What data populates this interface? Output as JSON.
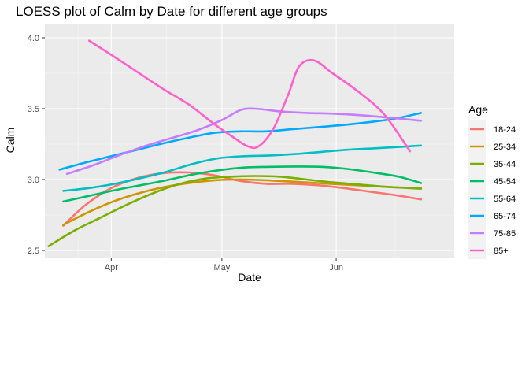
{
  "chart_data": {
    "type": "line",
    "title": "LOESS plot of Calm by Date for different age groups",
    "xlabel": "Date",
    "ylabel": "Calm",
    "xlim": [
      "2020-03-14",
      "2020-07-03"
    ],
    "ylim": [
      2.45,
      4.1
    ],
    "x_ticks": [
      "2020-04-01",
      "2020-05-01",
      "2020-06-01"
    ],
    "x_tick_labels": [
      "Apr",
      "May",
      "Jun"
    ],
    "y_ticks": [
      2.5,
      3.0,
      3.5,
      4.0
    ],
    "y_tick_labels": [
      "2.5",
      "3.0",
      "3.5",
      "4.0"
    ],
    "grid": true,
    "legend": {
      "title": "Age",
      "position": "right"
    },
    "series": [
      {
        "name": "18-24",
        "color": "#F8766D",
        "x": [
          "2020-03-19",
          "2020-03-25",
          "2020-04-01",
          "2020-04-08",
          "2020-04-15",
          "2020-04-22",
          "2020-04-29",
          "2020-05-06",
          "2020-05-13",
          "2020-05-20",
          "2020-05-27",
          "2020-06-03",
          "2020-06-10",
          "2020-06-17",
          "2020-06-24"
        ],
        "y": [
          2.675,
          2.82,
          2.94,
          3.01,
          3.045,
          3.05,
          3.03,
          2.99,
          2.97,
          2.97,
          2.96,
          2.94,
          2.915,
          2.89,
          2.86
        ]
      },
      {
        "name": "25-34",
        "color": "#CD9600",
        "x": [
          "2020-03-19",
          "2020-03-25",
          "2020-04-01",
          "2020-04-08",
          "2020-04-15",
          "2020-04-22",
          "2020-04-29",
          "2020-05-06",
          "2020-05-13",
          "2020-05-20",
          "2020-05-27",
          "2020-06-03",
          "2020-06-10",
          "2020-06-17",
          "2020-06-24"
        ],
        "y": [
          2.68,
          2.76,
          2.84,
          2.9,
          2.945,
          2.975,
          2.995,
          3.0,
          2.995,
          2.985,
          2.975,
          2.965,
          2.955,
          2.945,
          2.94
        ]
      },
      {
        "name": "35-44",
        "color": "#7CAE00",
        "x": [
          "2020-03-15",
          "2020-03-22",
          "2020-03-29",
          "2020-04-05",
          "2020-04-12",
          "2020-04-19",
          "2020-04-26",
          "2020-05-03",
          "2020-05-10",
          "2020-05-17",
          "2020-05-24",
          "2020-05-31",
          "2020-06-07",
          "2020-06-14",
          "2020-06-24"
        ],
        "y": [
          2.53,
          2.64,
          2.73,
          2.82,
          2.9,
          2.965,
          3.005,
          3.02,
          3.025,
          3.02,
          3.0,
          2.98,
          2.965,
          2.95,
          2.935
        ]
      },
      {
        "name": "45-54",
        "color": "#00BE67",
        "x": [
          "2020-03-19",
          "2020-03-26",
          "2020-04-02",
          "2020-04-09",
          "2020-04-16",
          "2020-04-23",
          "2020-04-30",
          "2020-05-07",
          "2020-05-14",
          "2020-05-21",
          "2020-05-28",
          "2020-06-04",
          "2020-06-11",
          "2020-06-18",
          "2020-06-24"
        ],
        "y": [
          2.845,
          2.885,
          2.925,
          2.96,
          2.995,
          3.035,
          3.065,
          3.085,
          3.09,
          3.092,
          3.09,
          3.075,
          3.05,
          3.02,
          2.975
        ]
      },
      {
        "name": "55-64",
        "color": "#00BFC4",
        "x": [
          "2020-03-19",
          "2020-03-26",
          "2020-04-02",
          "2020-04-09",
          "2020-04-16",
          "2020-04-23",
          "2020-04-30",
          "2020-05-07",
          "2020-05-14",
          "2020-05-21",
          "2020-05-28",
          "2020-06-04",
          "2020-06-11",
          "2020-06-18",
          "2020-06-24"
        ],
        "y": [
          2.92,
          2.94,
          2.97,
          3.01,
          3.055,
          3.11,
          3.15,
          3.165,
          3.17,
          3.18,
          3.195,
          3.21,
          3.22,
          3.23,
          3.24
        ]
      },
      {
        "name": "65-74",
        "color": "#00A9FF",
        "x": [
          "2020-03-18",
          "2020-03-25",
          "2020-04-01",
          "2020-04-08",
          "2020-04-15",
          "2020-04-22",
          "2020-04-29",
          "2020-05-06",
          "2020-05-13",
          "2020-05-20",
          "2020-05-27",
          "2020-06-03",
          "2020-06-10",
          "2020-06-17",
          "2020-06-24"
        ],
        "y": [
          3.07,
          3.12,
          3.165,
          3.21,
          3.255,
          3.295,
          3.33,
          3.34,
          3.34,
          3.355,
          3.37,
          3.385,
          3.405,
          3.43,
          3.47
        ]
      },
      {
        "name": "75-85",
        "color": "#C77CFF",
        "x": [
          "2020-03-20",
          "2020-03-27",
          "2020-04-03",
          "2020-04-10",
          "2020-04-17",
          "2020-04-24",
          "2020-05-01",
          "2020-05-06",
          "2020-05-10",
          "2020-05-17",
          "2020-05-24",
          "2020-05-31",
          "2020-06-07",
          "2020-06-14",
          "2020-06-24"
        ],
        "y": [
          3.04,
          3.1,
          3.17,
          3.235,
          3.29,
          3.345,
          3.42,
          3.49,
          3.5,
          3.48,
          3.47,
          3.465,
          3.455,
          3.44,
          3.415
        ]
      },
      {
        "name": "85+",
        "color": "#FF61CC",
        "x": [
          "2020-03-26",
          "2020-04-01",
          "2020-04-08",
          "2020-04-15",
          "2020-04-22",
          "2020-04-29",
          "2020-05-04",
          "2020-05-08",
          "2020-05-11",
          "2020-05-15",
          "2020-05-19",
          "2020-05-22",
          "2020-05-26",
          "2020-05-31",
          "2020-06-07",
          "2020-06-14",
          "2020-06-21"
        ],
        "y": [
          3.98,
          3.88,
          3.76,
          3.64,
          3.53,
          3.39,
          3.3,
          3.235,
          3.235,
          3.36,
          3.6,
          3.8,
          3.84,
          3.75,
          3.62,
          3.46,
          3.2
        ]
      }
    ]
  }
}
